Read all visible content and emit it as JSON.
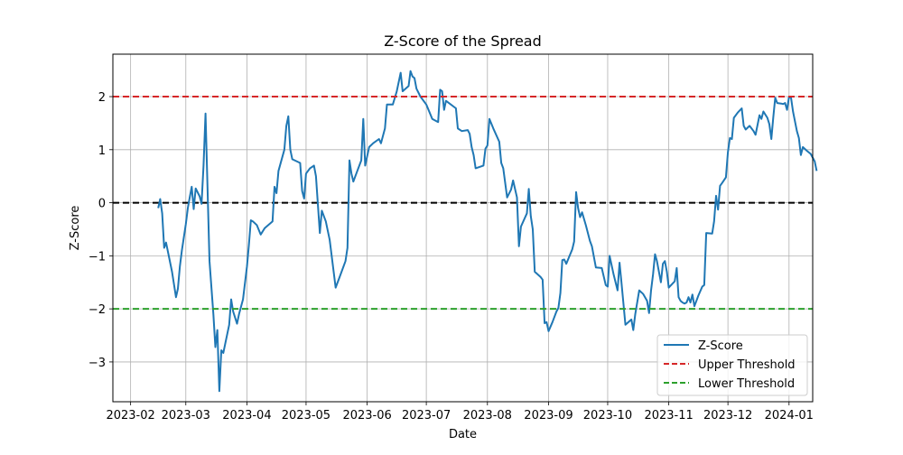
{
  "chart_data": {
    "type": "line",
    "title": "Z-Score of the Spread",
    "xlabel": "Date",
    "ylabel": "Z-Score",
    "x_ticks": [
      "2023-02",
      "2023-03",
      "2023-04",
      "2023-05",
      "2023-06",
      "2023-07",
      "2023-08",
      "2023-09",
      "2023-10",
      "2023-11",
      "2023-12",
      "2024-01"
    ],
    "y_ticks": [
      "−3",
      "−2",
      "−1",
      "0",
      "1",
      "2"
    ],
    "xlim": [
      "2023-01-23",
      "2024-01-13"
    ],
    "ylim": [
      -3.75,
      2.8
    ],
    "grid": true,
    "legend_position": "lower-right",
    "series": [
      {
        "name": "Z-Score",
        "color": "#1f77b4",
        "style": "solid",
        "points": [
          [
            "2023-02-15",
            -0.1
          ],
          [
            "2023-02-16",
            0.07
          ],
          [
            "2023-02-17",
            -0.2
          ],
          [
            "2023-02-18",
            -0.85
          ],
          [
            "2023-02-19",
            -0.75
          ],
          [
            "2023-02-22",
            -1.3
          ],
          [
            "2023-02-24",
            -1.78
          ],
          [
            "2023-02-25",
            -1.62
          ],
          [
            "2023-02-26",
            -1.2
          ],
          [
            "2023-02-27",
            -0.9
          ],
          [
            "2023-03-01",
            -0.4
          ],
          [
            "2023-03-02",
            -0.1
          ],
          [
            "2023-03-03",
            0.1
          ],
          [
            "2023-03-04",
            0.3
          ],
          [
            "2023-03-05",
            -0.12
          ],
          [
            "2023-03-06",
            0.27
          ],
          [
            "2023-03-08",
            0.12
          ],
          [
            "2023-03-09",
            -0.02
          ],
          [
            "2023-03-10",
            0.7
          ],
          [
            "2023-03-11",
            1.68
          ],
          [
            "2023-03-13",
            -1.1
          ],
          [
            "2023-03-15",
            -2.1
          ],
          [
            "2023-03-16",
            -2.72
          ],
          [
            "2023-03-17",
            -2.4
          ],
          [
            "2023-03-18",
            -3.55
          ],
          [
            "2023-03-19",
            -2.78
          ],
          [
            "2023-03-20",
            -2.83
          ],
          [
            "2023-03-23",
            -2.3
          ],
          [
            "2023-03-24",
            -1.82
          ],
          [
            "2023-03-25",
            -2.05
          ],
          [
            "2023-03-27",
            -2.28
          ],
          [
            "2023-03-28",
            -2.1
          ],
          [
            "2023-03-30",
            -1.82
          ],
          [
            "2023-04-01",
            -1.2
          ],
          [
            "2023-04-02",
            -0.8
          ],
          [
            "2023-04-03",
            -0.33
          ],
          [
            "2023-04-04",
            -0.35
          ],
          [
            "2023-04-06",
            -0.42
          ],
          [
            "2023-04-08",
            -0.6
          ],
          [
            "2023-04-10",
            -0.48
          ],
          [
            "2023-04-14",
            -0.35
          ],
          [
            "2023-04-15",
            0.3
          ],
          [
            "2023-04-16",
            0.18
          ],
          [
            "2023-04-17",
            0.6
          ],
          [
            "2023-04-20",
            1.0
          ],
          [
            "2023-04-21",
            1.45
          ],
          [
            "2023-04-22",
            1.63
          ],
          [
            "2023-04-23",
            1.0
          ],
          [
            "2023-04-24",
            0.82
          ],
          [
            "2023-04-28",
            0.75
          ],
          [
            "2023-04-29",
            0.22
          ],
          [
            "2023-04-30",
            0.08
          ],
          [
            "2023-05-01",
            0.55
          ],
          [
            "2023-05-03",
            0.65
          ],
          [
            "2023-05-05",
            0.7
          ],
          [
            "2023-05-06",
            0.5
          ],
          [
            "2023-05-08",
            -0.57
          ],
          [
            "2023-05-09",
            -0.15
          ],
          [
            "2023-05-11",
            -0.35
          ],
          [
            "2023-05-13",
            -0.7
          ],
          [
            "2023-05-15",
            -1.3
          ],
          [
            "2023-05-16",
            -1.6
          ],
          [
            "2023-05-18",
            -1.4
          ],
          [
            "2023-05-21",
            -1.1
          ],
          [
            "2023-05-22",
            -0.85
          ],
          [
            "2023-05-23",
            0.8
          ],
          [
            "2023-05-24",
            0.55
          ],
          [
            "2023-05-25",
            0.4
          ],
          [
            "2023-05-27",
            0.6
          ],
          [
            "2023-05-29",
            0.8
          ],
          [
            "2023-05-30",
            1.58
          ],
          [
            "2023-05-31",
            0.7
          ],
          [
            "2023-06-02",
            1.05
          ],
          [
            "2023-06-04",
            1.12
          ],
          [
            "2023-06-07",
            1.2
          ],
          [
            "2023-06-08",
            1.12
          ],
          [
            "2023-06-10",
            1.4
          ],
          [
            "2023-06-11",
            1.85
          ],
          [
            "2023-06-14",
            1.85
          ],
          [
            "2023-06-16",
            2.1
          ],
          [
            "2023-06-18",
            2.45
          ],
          [
            "2023-06-19",
            2.1
          ],
          [
            "2023-06-22",
            2.2
          ],
          [
            "2023-06-23",
            2.48
          ],
          [
            "2023-06-24",
            2.38
          ],
          [
            "2023-06-25",
            2.35
          ],
          [
            "2023-06-26",
            2.15
          ],
          [
            "2023-06-28",
            2.0
          ],
          [
            "2023-07-01",
            1.85
          ],
          [
            "2023-07-04",
            1.58
          ],
          [
            "2023-07-07",
            1.52
          ],
          [
            "2023-07-08",
            2.13
          ],
          [
            "2023-07-09",
            2.1
          ],
          [
            "2023-07-10",
            1.75
          ],
          [
            "2023-07-11",
            1.92
          ],
          [
            "2023-07-16",
            1.78
          ],
          [
            "2023-07-17",
            1.4
          ],
          [
            "2023-07-19",
            1.35
          ],
          [
            "2023-07-22",
            1.37
          ],
          [
            "2023-07-23",
            1.3
          ],
          [
            "2023-07-24",
            1.05
          ],
          [
            "2023-07-25",
            0.9
          ],
          [
            "2023-07-26",
            0.65
          ],
          [
            "2023-07-30",
            0.7
          ],
          [
            "2023-07-31",
            1.02
          ],
          [
            "2023-08-01",
            1.08
          ],
          [
            "2023-08-02",
            1.58
          ],
          [
            "2023-08-04",
            1.4
          ],
          [
            "2023-08-07",
            1.15
          ],
          [
            "2023-08-08",
            0.75
          ],
          [
            "2023-08-09",
            0.65
          ],
          [
            "2023-08-11",
            0.1
          ],
          [
            "2023-08-13",
            0.25
          ],
          [
            "2023-08-14",
            0.42
          ],
          [
            "2023-08-16",
            0.1
          ],
          [
            "2023-08-17",
            -0.82
          ],
          [
            "2023-08-18",
            -0.45
          ],
          [
            "2023-08-21",
            -0.2
          ],
          [
            "2023-08-22",
            0.26
          ],
          [
            "2023-08-23",
            -0.25
          ],
          [
            "2023-08-24",
            -0.5
          ],
          [
            "2023-08-25",
            -1.3
          ],
          [
            "2023-08-28",
            -1.4
          ],
          [
            "2023-08-29",
            -1.45
          ],
          [
            "2023-08-30",
            -2.27
          ],
          [
            "2023-08-31",
            -2.25
          ],
          [
            "2023-09-01",
            -2.42
          ],
          [
            "2023-09-03",
            -2.25
          ],
          [
            "2023-09-05",
            -2.05
          ],
          [
            "2023-09-06",
            -1.98
          ],
          [
            "2023-09-07",
            -1.7
          ],
          [
            "2023-09-08",
            -1.08
          ],
          [
            "2023-09-09",
            -1.07
          ],
          [
            "2023-09-10",
            -1.15
          ],
          [
            "2023-09-13",
            -0.88
          ],
          [
            "2023-09-14",
            -0.73
          ],
          [
            "2023-09-15",
            0.2
          ],
          [
            "2023-09-16",
            -0.1
          ],
          [
            "2023-09-17",
            -0.27
          ],
          [
            "2023-09-18",
            -0.18
          ],
          [
            "2023-09-20",
            -0.43
          ],
          [
            "2023-09-22",
            -0.72
          ],
          [
            "2023-09-23",
            -0.82
          ],
          [
            "2023-09-25",
            -1.22
          ],
          [
            "2023-09-28",
            -1.23
          ],
          [
            "2023-09-30",
            -1.55
          ],
          [
            "2023-10-01",
            -1.58
          ],
          [
            "2023-10-02",
            -1.0
          ],
          [
            "2023-10-04",
            -1.35
          ],
          [
            "2023-10-06",
            -1.65
          ],
          [
            "2023-10-07",
            -1.13
          ],
          [
            "2023-10-08",
            -1.5
          ],
          [
            "2023-10-10",
            -2.3
          ],
          [
            "2023-10-13",
            -2.2
          ],
          [
            "2023-10-14",
            -2.4
          ],
          [
            "2023-10-15",
            -2.1
          ],
          [
            "2023-10-17",
            -1.65
          ],
          [
            "2023-10-19",
            -1.72
          ],
          [
            "2023-10-21",
            -1.85
          ],
          [
            "2023-10-22",
            -2.08
          ],
          [
            "2023-10-23",
            -1.65
          ],
          [
            "2023-10-24",
            -1.35
          ],
          [
            "2023-10-25",
            -0.97
          ],
          [
            "2023-10-26",
            -1.1
          ],
          [
            "2023-10-27",
            -1.3
          ],
          [
            "2023-10-28",
            -1.5
          ],
          [
            "2023-10-29",
            -1.15
          ],
          [
            "2023-10-30",
            -1.1
          ],
          [
            "2023-10-31",
            -1.3
          ],
          [
            "2023-11-01",
            -1.6
          ],
          [
            "2023-11-04",
            -1.48
          ],
          [
            "2023-11-05",
            -1.23
          ],
          [
            "2023-11-06",
            -1.78
          ],
          [
            "2023-11-07",
            -1.85
          ],
          [
            "2023-11-08",
            -1.88
          ],
          [
            "2023-11-09",
            -1.9
          ],
          [
            "2023-11-10",
            -1.88
          ],
          [
            "2023-11-11",
            -1.78
          ],
          [
            "2023-11-12",
            -1.88
          ],
          [
            "2023-11-13",
            -1.73
          ],
          [
            "2023-11-14",
            -1.95
          ],
          [
            "2023-11-16",
            -1.75
          ],
          [
            "2023-11-18",
            -1.58
          ],
          [
            "2023-11-19",
            -1.55
          ],
          [
            "2023-11-20",
            -0.57
          ],
          [
            "2023-11-23",
            -0.58
          ],
          [
            "2023-11-24",
            -0.35
          ],
          [
            "2023-11-25",
            0.13
          ],
          [
            "2023-11-26",
            -0.13
          ],
          [
            "2023-11-27",
            0.32
          ],
          [
            "2023-11-28",
            0.37
          ],
          [
            "2023-11-30",
            0.48
          ],
          [
            "2023-12-01",
            0.95
          ],
          [
            "2023-12-02",
            1.22
          ],
          [
            "2023-12-03",
            1.2
          ],
          [
            "2023-12-04",
            1.6
          ],
          [
            "2023-12-06",
            1.7
          ],
          [
            "2023-12-08",
            1.78
          ],
          [
            "2023-12-09",
            1.45
          ],
          [
            "2023-12-10",
            1.38
          ],
          [
            "2023-12-12",
            1.45
          ],
          [
            "2023-12-14",
            1.35
          ],
          [
            "2023-12-15",
            1.28
          ],
          [
            "2023-12-17",
            1.65
          ],
          [
            "2023-12-18",
            1.58
          ],
          [
            "2023-12-19",
            1.72
          ],
          [
            "2023-12-21",
            1.6
          ],
          [
            "2023-12-22",
            1.48
          ],
          [
            "2023-12-23",
            1.2
          ],
          [
            "2023-12-24",
            1.6
          ],
          [
            "2023-12-25",
            1.98
          ],
          [
            "2023-12-26",
            1.88
          ],
          [
            "2023-12-28",
            1.87
          ],
          [
            "2023-12-29",
            1.86
          ],
          [
            "2023-12-30",
            1.88
          ],
          [
            "2023-12-31",
            1.75
          ],
          [
            "2024-01-01",
            2.0
          ],
          [
            "2024-01-02",
            1.98
          ],
          [
            "2024-01-03",
            1.72
          ],
          [
            "2024-01-05",
            1.35
          ],
          [
            "2024-01-06",
            1.22
          ],
          [
            "2024-01-07",
            0.9
          ],
          [
            "2024-01-08",
            1.05
          ],
          [
            "2024-01-10",
            0.98
          ],
          [
            "2024-01-12",
            0.92
          ],
          [
            "2024-01-13",
            0.85
          ],
          [
            "2024-01-14",
            0.78
          ],
          [
            "2024-01-15",
            0.6
          ]
        ]
      },
      {
        "name": "Upper Threshold",
        "color": "#d62728",
        "style": "dashed",
        "y": 2
      },
      {
        "name": "Lower Threshold",
        "color": "#2ca02c",
        "style": "dashed",
        "y": -2
      }
    ],
    "reference_lines": [
      {
        "y": 0,
        "color": "#000000",
        "style": "dashed"
      }
    ]
  }
}
